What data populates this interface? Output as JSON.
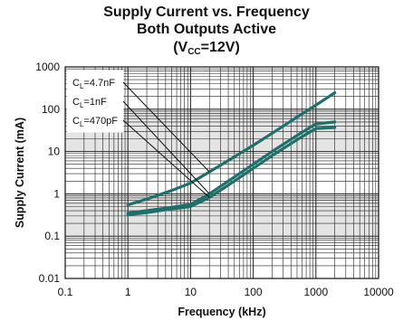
{
  "chart_data": {
    "type": "line",
    "title_line1": "Supply Current vs. Frequency",
    "title_line2": "Both Outputs Active",
    "title_line3_pre": "(V",
    "title_line3_sub": "CC",
    "title_line3_post": "=12V)",
    "xlabel": "Frequency (kHz)",
    "ylabel": "Supply Current (mA)",
    "x_scale": "log",
    "y_scale": "log",
    "xlim": [
      0.1,
      10000
    ],
    "ylim": [
      0.01,
      1000
    ],
    "x_ticks": [
      "0.1",
      "1",
      "10",
      "100",
      "1000",
      "10000"
    ],
    "y_ticks": [
      "0.01",
      "0.1",
      "1",
      "10",
      "100",
      "1000"
    ],
    "grid": true,
    "legend_placement": "top-left",
    "line_color": "#1f6f6a",
    "series": [
      {
        "label_main": "C",
        "label_sub": "L",
        "label_value": "=4.7nF",
        "x": [
          1,
          2,
          5,
          10,
          20,
          50,
          100,
          200,
          500,
          1000,
          2000
        ],
        "y": [
          0.55,
          0.75,
          1.2,
          1.8,
          3.3,
          7.5,
          14,
          27,
          65,
          125,
          245
        ]
      },
      {
        "label_main": "C",
        "label_sub": "L",
        "label_value": "=1nF",
        "x": [
          1,
          2,
          5,
          10,
          20,
          50,
          100,
          200,
          500,
          1000,
          2000
        ],
        "y": [
          0.35,
          0.4,
          0.48,
          0.56,
          1.0,
          2.5,
          5,
          10,
          24,
          45,
          50
        ]
      },
      {
        "label_main": "C",
        "label_sub": "L",
        "label_value": "=470pF",
        "x": [
          1,
          2,
          5,
          10,
          20,
          50,
          100,
          200,
          500,
          1000,
          2000
        ],
        "y": [
          0.32,
          0.36,
          0.44,
          0.5,
          0.82,
          2.0,
          4,
          8,
          19,
          35,
          37
        ]
      }
    ]
  }
}
